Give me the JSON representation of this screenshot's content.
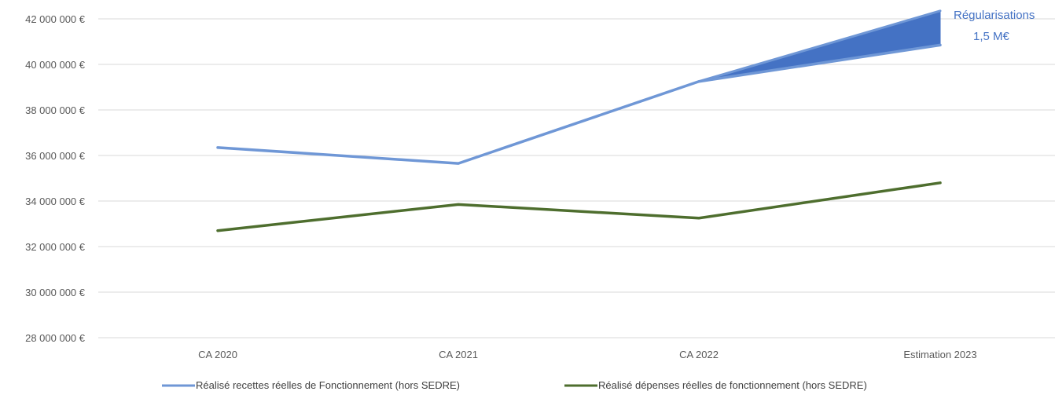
{
  "chart_data": {
    "type": "line",
    "categories": [
      "CA 2020",
      "CA 2021",
      "CA 2022",
      "Estimation 2023"
    ],
    "y_tick_labels": [
      "28 000 000 €",
      "30 000 000 €",
      "32 000 000 €",
      "34 000 000 €",
      "36 000 000 €",
      "38 000 000 €",
      "40 000 000 €",
      "42 000 000 €"
    ],
    "ylim": [
      28000000,
      42000000
    ],
    "y_tick_step": 2000000,
    "grid": true,
    "legend_position": "bottom",
    "series": [
      {
        "name": "Réalisé recettes réelles de Fonctionnement (hors SEDRE)",
        "values": [
          36350000,
          35650000,
          39250000,
          40850000
        ],
        "color": "#6f97d6"
      },
      {
        "name": "Réalisé dépenses réelles de fonctionnement (hors SEDRE)",
        "values": [
          32700000,
          33850000,
          33250000,
          34800000
        ],
        "color": "#4e6e2e"
      }
    ],
    "regularisation_band": {
      "from_category": "CA 2022",
      "to_category": "Estimation 2023",
      "base_value_start": 39250000,
      "top_value_end": 42350000,
      "base_value_end": 40850000,
      "color": "#4472c4"
    },
    "annotation": {
      "line1": "Régularisations",
      "line2": "1,5 M€",
      "color": "#4472c4"
    }
  }
}
